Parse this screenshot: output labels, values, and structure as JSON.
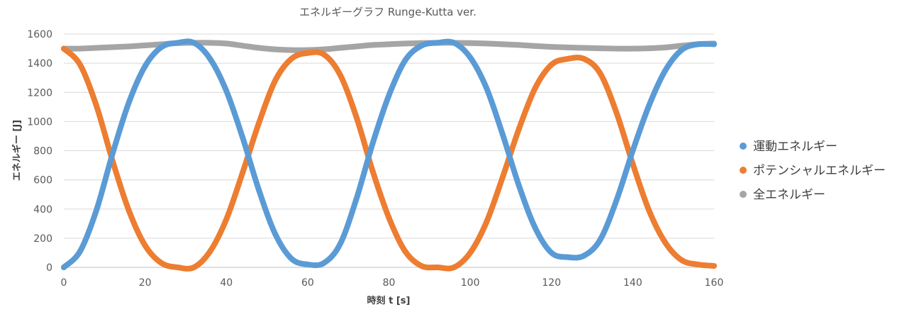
{
  "chart_data": {
    "type": "scatter",
    "title": "エネルギーグラフ Runge-Kutta ver.",
    "xlabel": "時刻 t [s]",
    "ylabel": "エネルギー [J]",
    "xlim": [
      0,
      160
    ],
    "ylim": [
      0,
      1600
    ],
    "x_ticks": [
      0,
      20,
      40,
      60,
      80,
      100,
      120,
      140,
      160
    ],
    "y_ticks": [
      0,
      200,
      400,
      600,
      800,
      1000,
      1200,
      1400,
      1600
    ],
    "grid": "horizontal",
    "legend_position": "right",
    "series": [
      {
        "name": "運動エネルギー",
        "color": "#5b9bd5",
        "x": [
          0,
          4,
          8,
          12,
          16,
          20,
          24,
          28,
          32,
          36,
          40,
          44,
          48,
          52,
          56,
          60,
          64,
          68,
          72,
          76,
          80,
          84,
          88,
          92,
          96,
          100,
          104,
          108,
          112,
          116,
          120,
          124,
          128,
          132,
          136,
          140,
          144,
          148,
          152,
          156,
          160
        ],
        "values": [
          0,
          110,
          390,
          780,
          1130,
          1380,
          1510,
          1540,
          1540,
          1430,
          1210,
          890,
          530,
          230,
          60,
          20,
          30,
          160,
          470,
          850,
          1180,
          1420,
          1520,
          1540,
          1540,
          1440,
          1230,
          910,
          560,
          270,
          100,
          70,
          80,
          190,
          460,
          800,
          1110,
          1350,
          1490,
          1530,
          1530
        ]
      },
      {
        "name": "ポテンシャルエネルギー",
        "color": "#ed7d31",
        "x": [
          0,
          4,
          8,
          12,
          16,
          20,
          24,
          28,
          32,
          36,
          40,
          44,
          48,
          52,
          56,
          60,
          64,
          68,
          72,
          76,
          80,
          84,
          88,
          92,
          96,
          100,
          104,
          108,
          112,
          116,
          120,
          124,
          128,
          132,
          136,
          140,
          144,
          148,
          152,
          156,
          160
        ],
        "values": [
          1500,
          1390,
          1110,
          730,
          390,
          150,
          30,
          0,
          0,
          110,
          330,
          650,
          990,
          1280,
          1430,
          1470,
          1460,
          1320,
          1030,
          660,
          340,
          110,
          10,
          0,
          0,
          100,
          310,
          620,
          950,
          1230,
          1390,
          1430,
          1430,
          1330,
          1060,
          710,
          390,
          170,
          50,
          20,
          10
        ]
      },
      {
        "name": "全エネルギー",
        "color": "#a5a5a5",
        "x": [
          0,
          4,
          8,
          12,
          16,
          20,
          24,
          28,
          32,
          36,
          40,
          44,
          48,
          52,
          56,
          60,
          64,
          68,
          72,
          76,
          80,
          84,
          88,
          92,
          96,
          100,
          104,
          108,
          112,
          116,
          120,
          124,
          128,
          132,
          136,
          140,
          144,
          148,
          152,
          156,
          160
        ],
        "values": [
          1500,
          1500,
          1505,
          1510,
          1515,
          1522,
          1530,
          1538,
          1540,
          1540,
          1535,
          1520,
          1505,
          1495,
          1490,
          1490,
          1495,
          1505,
          1515,
          1525,
          1530,
          1535,
          1538,
          1540,
          1540,
          1538,
          1535,
          1530,
          1525,
          1518,
          1512,
          1508,
          1505,
          1502,
          1500,
          1500,
          1502,
          1508,
          1520,
          1530,
          1535
        ]
      }
    ]
  }
}
